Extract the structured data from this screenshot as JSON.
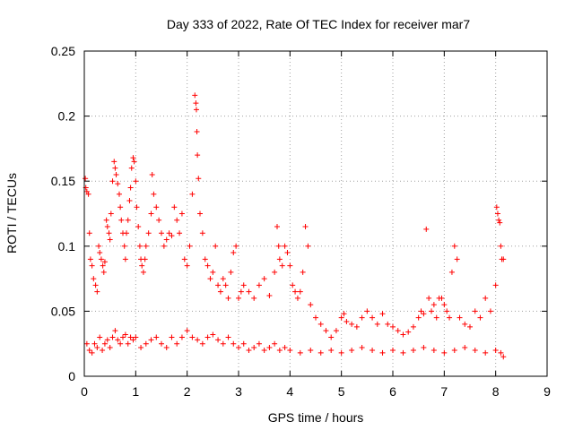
{
  "chart_data": {
    "type": "scatter",
    "title": "Day 333 of 2022, Rate Of TEC Index for receiver mar7",
    "xlabel": "GPS time / hours",
    "ylabel": "ROTI / TECUs",
    "xlim": [
      0,
      9
    ],
    "ylim": [
      0,
      0.25
    ],
    "xticks": [
      0,
      1,
      2,
      3,
      4,
      5,
      6,
      7,
      8,
      9
    ],
    "xtick_labels": [
      "0",
      "1",
      "2",
      "3",
      "4",
      "5",
      "6",
      "7",
      "8",
      "9"
    ],
    "yticks": [
      0,
      0.05,
      0.1,
      0.15,
      0.2,
      0.25
    ],
    "ytick_labels": [
      "0",
      "0.05",
      "0.1",
      "0.15",
      "0.2",
      "0.25"
    ],
    "grid": true,
    "marker": "+",
    "color": "#ff0000",
    "series": [
      {
        "points": [
          [
            0.02,
            0.152
          ],
          [
            0.03,
            0.145
          ],
          [
            0.05,
            0.142
          ],
          [
            0.08,
            0.14
          ],
          [
            0.1,
            0.11
          ],
          [
            0.12,
            0.09
          ],
          [
            0.15,
            0.085
          ],
          [
            0.18,
            0.075
          ],
          [
            0.22,
            0.07
          ],
          [
            0.25,
            0.065
          ],
          [
            0.28,
            0.1
          ],
          [
            0.3,
            0.095
          ],
          [
            0.33,
            0.09
          ],
          [
            0.36,
            0.085
          ],
          [
            0.38,
            0.08
          ],
          [
            0.4,
            0.088
          ],
          [
            0.43,
            0.12
          ],
          [
            0.45,
            0.115
          ],
          [
            0.48,
            0.11
          ],
          [
            0.5,
            0.105
          ],
          [
            0.52,
            0.125
          ],
          [
            0.55,
            0.15
          ],
          [
            0.58,
            0.165
          ],
          [
            0.6,
            0.16
          ],
          [
            0.62,
            0.155
          ],
          [
            0.65,
            0.148
          ],
          [
            0.68,
            0.14
          ],
          [
            0.7,
            0.13
          ],
          [
            0.72,
            0.12
          ],
          [
            0.75,
            0.11
          ],
          [
            0.78,
            0.1
          ],
          [
            0.8,
            0.09
          ],
          [
            0.82,
            0.11
          ],
          [
            0.85,
            0.12
          ],
          [
            0.88,
            0.135
          ],
          [
            0.9,
            0.145
          ],
          [
            0.92,
            0.16
          ],
          [
            0.95,
            0.168
          ],
          [
            0.97,
            0.165
          ],
          [
            1.0,
            0.15
          ],
          [
            1.02,
            0.13
          ],
          [
            1.05,
            0.115
          ],
          [
            1.08,
            0.1
          ],
          [
            1.1,
            0.09
          ],
          [
            1.12,
            0.085
          ],
          [
            1.15,
            0.08
          ],
          [
            1.18,
            0.09
          ],
          [
            1.2,
            0.1
          ],
          [
            1.25,
            0.11
          ],
          [
            1.3,
            0.125
          ],
          [
            1.32,
            0.155
          ],
          [
            1.35,
            0.14
          ],
          [
            1.4,
            0.13
          ],
          [
            1.45,
            0.12
          ],
          [
            1.5,
            0.11
          ],
          [
            1.55,
            0.1
          ],
          [
            1.6,
            0.105
          ],
          [
            1.65,
            0.11
          ],
          [
            1.7,
            0.108
          ],
          [
            1.75,
            0.13
          ],
          [
            1.8,
            0.12
          ],
          [
            1.85,
            0.11
          ],
          [
            1.9,
            0.125
          ],
          [
            1.95,
            0.09
          ],
          [
            2.0,
            0.085
          ],
          [
            2.05,
            0.1
          ],
          [
            2.1,
            0.14
          ],
          [
            2.15,
            0.216
          ],
          [
            2.17,
            0.21
          ],
          [
            2.18,
            0.205
          ],
          [
            2.19,
            0.188
          ],
          [
            2.2,
            0.17
          ],
          [
            2.22,
            0.152
          ],
          [
            2.25,
            0.125
          ],
          [
            2.3,
            0.11
          ],
          [
            2.35,
            0.09
          ],
          [
            2.4,
            0.085
          ],
          [
            2.45,
            0.075
          ],
          [
            2.5,
            0.08
          ],
          [
            2.55,
            0.1
          ],
          [
            2.6,
            0.07
          ],
          [
            2.65,
            0.065
          ],
          [
            2.7,
            0.075
          ],
          [
            2.75,
            0.07
          ],
          [
            2.8,
            0.06
          ],
          [
            2.85,
            0.08
          ],
          [
            2.9,
            0.095
          ],
          [
            2.95,
            0.1
          ],
          [
            3.0,
            0.06
          ],
          [
            3.05,
            0.065
          ],
          [
            3.1,
            0.07
          ],
          [
            3.2,
            0.065
          ],
          [
            3.3,
            0.06
          ],
          [
            3.4,
            0.07
          ],
          [
            3.5,
            0.075
          ],
          [
            3.6,
            0.062
          ],
          [
            3.7,
            0.08
          ],
          [
            3.75,
            0.115
          ],
          [
            3.78,
            0.1
          ],
          [
            3.8,
            0.09
          ],
          [
            3.85,
            0.085
          ],
          [
            3.9,
            0.1
          ],
          [
            3.95,
            0.095
          ],
          [
            4.0,
            0.085
          ],
          [
            4.05,
            0.07
          ],
          [
            4.1,
            0.065
          ],
          [
            4.15,
            0.06
          ],
          [
            4.2,
            0.065
          ],
          [
            4.25,
            0.08
          ],
          [
            4.3,
            0.115
          ],
          [
            4.35,
            0.1
          ],
          [
            4.4,
            0.055
          ],
          [
            4.5,
            0.045
          ],
          [
            4.6,
            0.04
          ],
          [
            4.7,
            0.035
          ],
          [
            4.8,
            0.03
          ],
          [
            4.9,
            0.035
          ],
          [
            5.0,
            0.045
          ],
          [
            5.05,
            0.048
          ],
          [
            5.1,
            0.042
          ],
          [
            5.2,
            0.04
          ],
          [
            5.3,
            0.038
          ],
          [
            5.4,
            0.045
          ],
          [
            5.5,
            0.05
          ],
          [
            5.6,
            0.045
          ],
          [
            5.7,
            0.04
          ],
          [
            5.8,
            0.048
          ],
          [
            5.9,
            0.04
          ],
          [
            6.0,
            0.038
          ],
          [
            6.1,
            0.035
          ],
          [
            6.2,
            0.032
          ],
          [
            6.3,
            0.034
          ],
          [
            6.4,
            0.038
          ],
          [
            6.5,
            0.045
          ],
          [
            6.55,
            0.05
          ],
          [
            6.6,
            0.048
          ],
          [
            6.65,
            0.113
          ],
          [
            6.7,
            0.06
          ],
          [
            6.75,
            0.05
          ],
          [
            6.8,
            0.055
          ],
          [
            6.85,
            0.045
          ],
          [
            6.9,
            0.06
          ],
          [
            6.95,
            0.06
          ],
          [
            7.0,
            0.055
          ],
          [
            7.05,
            0.05
          ],
          [
            7.1,
            0.045
          ],
          [
            7.15,
            0.08
          ],
          [
            7.2,
            0.1
          ],
          [
            7.25,
            0.09
          ],
          [
            7.3,
            0.045
          ],
          [
            7.4,
            0.04
          ],
          [
            7.5,
            0.038
          ],
          [
            7.6,
            0.05
          ],
          [
            7.7,
            0.045
          ],
          [
            7.8,
            0.06
          ],
          [
            7.9,
            0.05
          ],
          [
            8.0,
            0.07
          ],
          [
            8.02,
            0.13
          ],
          [
            8.04,
            0.125
          ],
          [
            8.06,
            0.12
          ],
          [
            8.08,
            0.118
          ],
          [
            8.1,
            0.1
          ],
          [
            8.12,
            0.09
          ],
          [
            8.15,
            0.09
          ],
          [
            0.05,
            0.025
          ],
          [
            0.1,
            0.02
          ],
          [
            0.15,
            0.018
          ],
          [
            0.2,
            0.025
          ],
          [
            0.25,
            0.022
          ],
          [
            0.3,
            0.03
          ],
          [
            0.35,
            0.02
          ],
          [
            0.4,
            0.025
          ],
          [
            0.45,
            0.028
          ],
          [
            0.5,
            0.022
          ],
          [
            0.55,
            0.03
          ],
          [
            0.6,
            0.035
          ],
          [
            0.65,
            0.028
          ],
          [
            0.7,
            0.025
          ],
          [
            0.75,
            0.03
          ],
          [
            0.8,
            0.032
          ],
          [
            0.85,
            0.025
          ],
          [
            0.9,
            0.03
          ],
          [
            0.95,
            0.028
          ],
          [
            1.0,
            0.03
          ],
          [
            1.1,
            0.022
          ],
          [
            1.2,
            0.025
          ],
          [
            1.3,
            0.028
          ],
          [
            1.4,
            0.03
          ],
          [
            1.5,
            0.025
          ],
          [
            1.6,
            0.022
          ],
          [
            1.7,
            0.03
          ],
          [
            1.8,
            0.025
          ],
          [
            1.9,
            0.03
          ],
          [
            2.0,
            0.035
          ],
          [
            2.1,
            0.03
          ],
          [
            2.2,
            0.028
          ],
          [
            2.3,
            0.025
          ],
          [
            2.4,
            0.03
          ],
          [
            2.5,
            0.032
          ],
          [
            2.6,
            0.028
          ],
          [
            2.7,
            0.025
          ],
          [
            2.8,
            0.03
          ],
          [
            2.9,
            0.025
          ],
          [
            3.0,
            0.022
          ],
          [
            3.1,
            0.025
          ],
          [
            3.2,
            0.02
          ],
          [
            3.3,
            0.022
          ],
          [
            3.4,
            0.025
          ],
          [
            3.5,
            0.02
          ],
          [
            3.6,
            0.022
          ],
          [
            3.7,
            0.025
          ],
          [
            3.8,
            0.02
          ],
          [
            3.9,
            0.022
          ],
          [
            4.0,
            0.02
          ],
          [
            4.2,
            0.018
          ],
          [
            4.4,
            0.02
          ],
          [
            4.6,
            0.018
          ],
          [
            4.8,
            0.02
          ],
          [
            5.0,
            0.018
          ],
          [
            5.2,
            0.02
          ],
          [
            5.4,
            0.022
          ],
          [
            5.6,
            0.02
          ],
          [
            5.8,
            0.018
          ],
          [
            6.0,
            0.02
          ],
          [
            6.2,
            0.018
          ],
          [
            6.4,
            0.02
          ],
          [
            6.6,
            0.022
          ],
          [
            6.8,
            0.02
          ],
          [
            7.0,
            0.018
          ],
          [
            7.2,
            0.02
          ],
          [
            7.4,
            0.022
          ],
          [
            7.6,
            0.02
          ],
          [
            7.8,
            0.018
          ],
          [
            8.0,
            0.02
          ],
          [
            8.1,
            0.018
          ],
          [
            8.15,
            0.015
          ]
        ]
      }
    ]
  }
}
